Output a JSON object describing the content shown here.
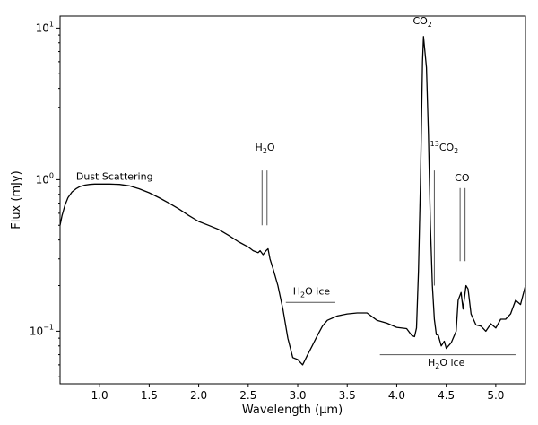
{
  "chart_data": {
    "type": "line",
    "xlabel": "Wavelength (μm)",
    "ylabel": "Flux (mJy)",
    "xlim": [
      0.6,
      5.3
    ],
    "ylim": [
      0.045,
      12
    ],
    "yscale": "log",
    "grid": false,
    "x_ticks": [
      {
        "value": 1.0,
        "label": "1.0"
      },
      {
        "value": 1.5,
        "label": "1.5"
      },
      {
        "value": 2.0,
        "label": "2.0"
      },
      {
        "value": 2.5,
        "label": "2.5"
      },
      {
        "value": 3.0,
        "label": "3.0"
      },
      {
        "value": 3.5,
        "label": "3.5"
      },
      {
        "value": 4.0,
        "label": "4.0"
      },
      {
        "value": 4.5,
        "label": "4.5"
      },
      {
        "value": 5.0,
        "label": "5.0"
      }
    ],
    "y_ticks": [
      {
        "value": 0.1,
        "base": "10",
        "exp": "−1"
      },
      {
        "value": 1,
        "base": "10",
        "exp": "0"
      },
      {
        "value": 10,
        "base": "10",
        "exp": "1"
      }
    ],
    "series": [
      {
        "x": [
          0.6,
          0.62,
          0.65,
          0.68,
          0.72,
          0.76,
          0.8,
          0.85,
          0.9,
          0.95,
          1.0,
          1.1,
          1.2,
          1.3,
          1.4,
          1.5,
          1.6,
          1.7,
          1.8,
          1.9,
          2.0,
          2.1,
          2.2,
          2.3,
          2.4,
          2.5,
          2.55,
          2.6,
          2.62,
          2.65,
          2.68,
          2.7,
          2.72,
          2.75,
          2.8,
          2.85,
          2.9,
          2.95,
          3.0,
          3.05,
          3.1,
          3.15,
          3.2,
          3.25,
          3.3,
          3.4,
          3.5,
          3.6,
          3.7,
          3.8,
          3.9,
          4.0,
          4.1,
          4.15,
          4.18,
          4.2,
          4.22,
          4.24,
          4.26,
          4.27,
          4.28,
          4.3,
          4.32,
          4.34,
          4.36,
          4.38,
          4.4,
          4.42,
          4.45,
          4.48,
          4.5,
          4.55,
          4.6,
          4.62,
          4.65,
          4.67,
          4.7,
          4.72,
          4.75,
          4.8,
          4.85,
          4.9,
          4.95,
          5.0,
          5.05,
          5.1,
          5.15,
          5.2,
          5.25,
          5.3
        ],
        "y": [
          0.5,
          0.58,
          0.68,
          0.76,
          0.83,
          0.87,
          0.9,
          0.92,
          0.93,
          0.935,
          0.935,
          0.935,
          0.93,
          0.91,
          0.87,
          0.82,
          0.76,
          0.7,
          0.64,
          0.58,
          0.53,
          0.5,
          0.47,
          0.43,
          0.39,
          0.36,
          0.34,
          0.33,
          0.34,
          0.32,
          0.34,
          0.35,
          0.3,
          0.26,
          0.2,
          0.14,
          0.09,
          0.067,
          0.065,
          0.06,
          0.07,
          0.081,
          0.094,
          0.108,
          0.118,
          0.126,
          0.13,
          0.132,
          0.132,
          0.118,
          0.113,
          0.106,
          0.104,
          0.094,
          0.092,
          0.105,
          0.25,
          0.95,
          6.0,
          8.8,
          7.5,
          5.5,
          2.0,
          0.5,
          0.2,
          0.12,
          0.095,
          0.094,
          0.08,
          0.086,
          0.077,
          0.084,
          0.1,
          0.16,
          0.18,
          0.14,
          0.2,
          0.19,
          0.13,
          0.11,
          0.108,
          0.1,
          0.112,
          0.105,
          0.12,
          0.12,
          0.13,
          0.16,
          0.15,
          0.2
        ]
      }
    ],
    "annotations": [
      {
        "text": "Dust Scattering",
        "x": 1.15,
        "y": 1.0
      },
      {
        "main": "H",
        "sub": "2",
        "rest": "O",
        "x": 2.67,
        "y": 1.55,
        "lines": [
          2.64,
          2.69
        ],
        "line_top": 1.15,
        "line_bottom": 0.5
      },
      {
        "main": "CO",
        "sub": "2",
        "rest": "",
        "x": 4.26,
        "y": 10.6
      },
      {
        "sup": "13",
        "main": "CO",
        "sub": "2",
        "rest": "",
        "x": 4.48,
        "y": 1.55,
        "lines": [
          4.38
        ],
        "line_top": 1.15,
        "line_bottom": 0.2
      },
      {
        "main": "CO",
        "sub": "",
        "rest": "",
        "x": 4.66,
        "y": 0.98,
        "lines": [
          4.64,
          4.69
        ],
        "line_top": 0.88,
        "line_bottom": 0.29
      },
      {
        "main": "H",
        "sub": "2",
        "rest": "O ice",
        "x": 3.14,
        "y": 0.175,
        "band": [
          2.88,
          3.38
        ],
        "band_y": 0.155
      },
      {
        "main": "H",
        "sub": "2",
        "rest": "O ice",
        "x": 4.5,
        "y": 0.059,
        "band": [
          3.83,
          5.2
        ],
        "band_y": 0.07
      }
    ]
  }
}
